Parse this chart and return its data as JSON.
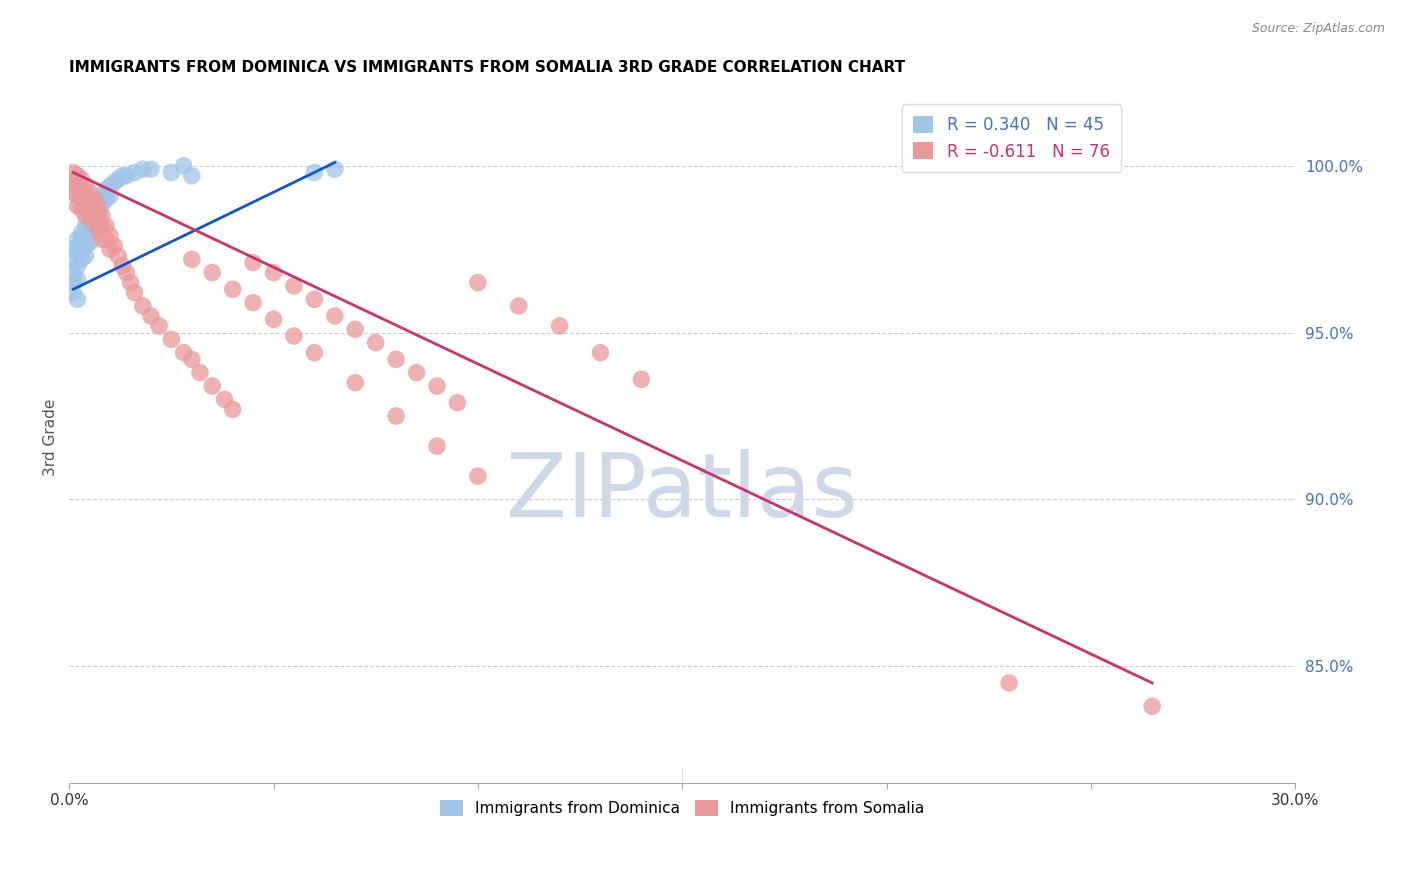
{
  "title": "IMMIGRANTS FROM DOMINICA VS IMMIGRANTS FROM SOMALIA 3RD GRADE CORRELATION CHART",
  "source": "Source: ZipAtlas.com",
  "ylabel": "3rd Grade",
  "ytick_labels": [
    "100.0%",
    "95.0%",
    "90.0%",
    "85.0%"
  ],
  "ytick_values": [
    1.0,
    0.95,
    0.9,
    0.85
  ],
  "xmin": 0.0,
  "xmax": 0.3,
  "ymin": 0.815,
  "ymax": 1.022,
  "R_dominica": 0.34,
  "N_dominica": 45,
  "R_somalia": -0.611,
  "N_somalia": 76,
  "color_dominica": "#9fc5e8",
  "color_somalia": "#ea9999",
  "color_line_dominica": "#1155cc",
  "color_line_somalia": "#cc3366",
  "color_right_axis": "#4472c4",
  "watermark_color": "#cfd8e8",
  "dom_x": [
    0.001,
    0.001,
    0.001,
    0.001,
    0.001,
    0.002,
    0.002,
    0.002,
    0.002,
    0.002,
    0.003,
    0.003,
    0.003,
    0.003,
    0.004,
    0.004,
    0.004,
    0.004,
    0.005,
    0.005,
    0.005,
    0.005,
    0.006,
    0.006,
    0.006,
    0.007,
    0.007,
    0.008,
    0.008,
    0.009,
    0.009,
    0.01,
    0.01,
    0.011,
    0.012,
    0.013,
    0.014,
    0.016,
    0.018,
    0.02,
    0.025,
    0.028,
    0.06,
    0.065,
    0.03
  ],
  "dom_y": [
    0.975,
    0.972,
    0.968,
    0.965,
    0.962,
    0.978,
    0.975,
    0.97,
    0.966,
    0.96,
    0.98,
    0.978,
    0.975,
    0.972,
    0.982,
    0.979,
    0.976,
    0.973,
    0.985,
    0.983,
    0.98,
    0.977,
    0.987,
    0.984,
    0.981,
    0.989,
    0.986,
    0.991,
    0.988,
    0.993,
    0.99,
    0.994,
    0.991,
    0.995,
    0.996,
    0.997,
    0.997,
    0.998,
    0.999,
    0.999,
    0.998,
    1.0,
    0.998,
    0.999,
    0.997
  ],
  "som_x": [
    0.001,
    0.001,
    0.001,
    0.002,
    0.002,
    0.002,
    0.002,
    0.003,
    0.003,
    0.003,
    0.003,
    0.004,
    0.004,
    0.004,
    0.004,
    0.005,
    0.005,
    0.005,
    0.006,
    0.006,
    0.006,
    0.007,
    0.007,
    0.007,
    0.008,
    0.008,
    0.008,
    0.009,
    0.009,
    0.01,
    0.01,
    0.011,
    0.012,
    0.013,
    0.014,
    0.015,
    0.016,
    0.018,
    0.02,
    0.022,
    0.025,
    0.028,
    0.03,
    0.032,
    0.035,
    0.038,
    0.04,
    0.045,
    0.05,
    0.055,
    0.06,
    0.065,
    0.07,
    0.075,
    0.08,
    0.085,
    0.09,
    0.095,
    0.1,
    0.11,
    0.12,
    0.13,
    0.14,
    0.03,
    0.035,
    0.04,
    0.045,
    0.05,
    0.055,
    0.06,
    0.07,
    0.08,
    0.09,
    0.1,
    0.23,
    0.265
  ],
  "som_y": [
    0.998,
    0.995,
    0.992,
    0.997,
    0.994,
    0.991,
    0.988,
    0.996,
    0.993,
    0.99,
    0.987,
    0.994,
    0.991,
    0.988,
    0.985,
    0.992,
    0.989,
    0.985,
    0.99,
    0.987,
    0.983,
    0.988,
    0.985,
    0.981,
    0.985,
    0.982,
    0.978,
    0.982,
    0.978,
    0.979,
    0.975,
    0.976,
    0.973,
    0.97,
    0.968,
    0.965,
    0.962,
    0.958,
    0.955,
    0.952,
    0.948,
    0.944,
    0.942,
    0.938,
    0.934,
    0.93,
    0.927,
    0.971,
    0.968,
    0.964,
    0.96,
    0.955,
    0.951,
    0.947,
    0.942,
    0.938,
    0.934,
    0.929,
    0.965,
    0.958,
    0.952,
    0.944,
    0.936,
    0.972,
    0.968,
    0.963,
    0.959,
    0.954,
    0.949,
    0.944,
    0.935,
    0.925,
    0.916,
    0.907,
    0.845,
    0.838
  ],
  "dom_line_x": [
    0.001,
    0.065
  ],
  "dom_line_y": [
    0.963,
    1.001
  ],
  "som_line_x": [
    0.001,
    0.265
  ],
  "som_line_y": [
    0.998,
    0.845
  ]
}
